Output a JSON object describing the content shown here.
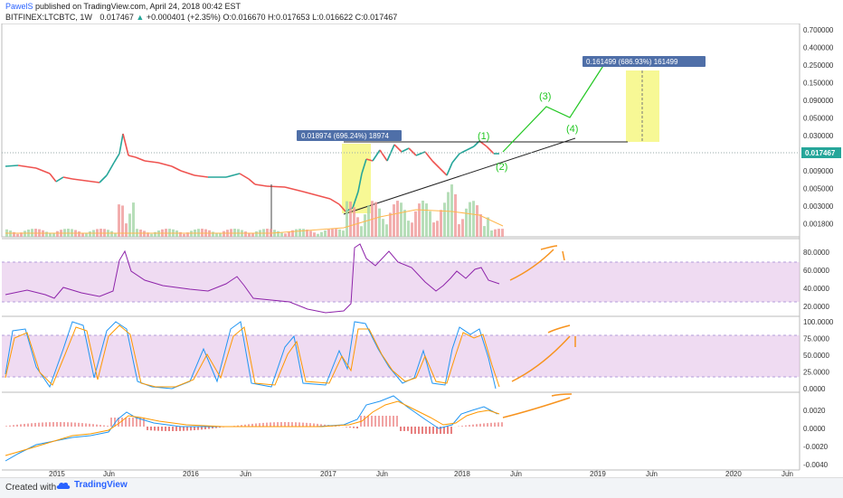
{
  "header": {
    "author": "PawelS",
    "published_text": "published on TradingView.com, April 24, 2018 00:42 EST",
    "symbol": "BITFINEX:LTCBTC, 1W",
    "last": "0.017467",
    "change": "+0.000401 (+2.35%)",
    "open_label": "O:",
    "open": "0.016670",
    "high_label": "H:",
    "high": "0.017653",
    "low_label": "L:",
    "low": "0.016622",
    "close_label": "C:",
    "close": "0.017467"
  },
  "price_axis": [
    "0.700000",
    "0.400000",
    "0.250000",
    "0.150000",
    "0.090000",
    "0.050000",
    "0.030000",
    "0.015000",
    "0.009000",
    "0.005000",
    "0.003000",
    "0.001800"
  ],
  "price_tag": "0.017467",
  "rsi_axis": [
    "80.0000",
    "60.0000",
    "40.0000",
    "20.0000"
  ],
  "stoch_axis": [
    "100.0000",
    "75.0000",
    "50.0000",
    "25.0000",
    "0.0000"
  ],
  "macd_axis": [
    "0.0020",
    "0.0000",
    "-0.0020",
    "-0.0040"
  ],
  "time_axis": [
    "2015",
    "Jun",
    "2016",
    "Jun",
    "2017",
    "Jun",
    "2018",
    "Jun",
    "2019",
    "Jun",
    "2020",
    "Jun"
  ],
  "annotations": {
    "measure1": "0.018974 (696.24%) 18974",
    "measure2": "0.161499 (686.93%) 161499",
    "wave1": "(1)",
    "wave2": "(2)",
    "wave3": "(3)",
    "wave4": "(4)"
  },
  "footer": {
    "created_with": "Created with",
    "brand": "TradingView"
  },
  "colors": {
    "up": "#26a69a",
    "down": "#ef5350",
    "rsi": "#8e24aa",
    "band": "#e1bee7",
    "measure": "#4f6fa8",
    "highlight": "#f6f78a",
    "wave": "#22c722",
    "orange": "#f7931e"
  }
}
